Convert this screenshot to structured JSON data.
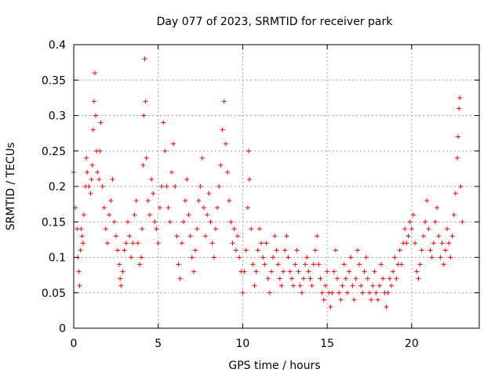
{
  "chart_data": {
    "type": "scatter",
    "title": "Day 077 of 2023, SRMTID for receiver park",
    "xlabel": "GPS time / hours",
    "ylabel": "SRMTID / TECUs",
    "xlim": [
      0,
      24
    ],
    "ylim": [
      0,
      0.4
    ],
    "x_ticks": [
      0,
      5,
      10,
      15,
      20
    ],
    "x_tick_labels": [
      "0",
      "5",
      "10",
      "15",
      "20"
    ],
    "y_ticks": [
      0,
      0.05,
      0.1,
      0.15,
      0.2,
      0.25,
      0.3,
      0.35,
      0.4
    ],
    "y_tick_labels": [
      "0",
      "0.05",
      "0.1",
      "0.15",
      "0.2",
      "0.25",
      "0.3",
      "0.35",
      "0.4"
    ],
    "grid": true,
    "marker": "+",
    "marker_color": "#ff0000",
    "series": [
      {
        "name": "SRMTID",
        "points": [
          [
            0.0,
            0.22
          ],
          [
            0.1,
            0.17
          ],
          [
            0.2,
            0.14
          ],
          [
            0.25,
            0.1
          ],
          [
            0.3,
            0.08
          ],
          [
            0.35,
            0.06
          ],
          [
            0.4,
            0.11
          ],
          [
            0.45,
            0.14
          ],
          [
            0.5,
            0.13
          ],
          [
            0.55,
            0.12
          ],
          [
            0.6,
            0.16
          ],
          [
            0.7,
            0.2
          ],
          [
            0.75,
            0.24
          ],
          [
            0.8,
            0.22
          ],
          [
            0.9,
            0.2
          ],
          [
            1.0,
            0.19
          ],
          [
            1.05,
            0.21
          ],
          [
            1.1,
            0.23
          ],
          [
            1.15,
            0.28
          ],
          [
            1.2,
            0.32
          ],
          [
            1.25,
            0.36
          ],
          [
            1.3,
            0.3
          ],
          [
            1.35,
            0.25
          ],
          [
            1.4,
            0.22
          ],
          [
            1.5,
            0.21
          ],
          [
            1.55,
            0.25
          ],
          [
            1.6,
            0.29
          ],
          [
            1.7,
            0.2
          ],
          [
            1.8,
            0.17
          ],
          [
            1.9,
            0.14
          ],
          [
            2.0,
            0.12
          ],
          [
            2.1,
            0.16
          ],
          [
            2.2,
            0.18
          ],
          [
            2.3,
            0.21
          ],
          [
            2.4,
            0.15
          ],
          [
            2.5,
            0.13
          ],
          [
            2.6,
            0.11
          ],
          [
            2.7,
            0.09
          ],
          [
            2.75,
            0.07
          ],
          [
            2.8,
            0.06
          ],
          [
            2.9,
            0.08
          ],
          [
            3.0,
            0.11
          ],
          [
            3.1,
            0.12
          ],
          [
            3.2,
            0.15
          ],
          [
            3.3,
            0.13
          ],
          [
            3.4,
            0.1
          ],
          [
            3.5,
            0.12
          ],
          [
            3.6,
            0.16
          ],
          [
            3.7,
            0.18
          ],
          [
            3.8,
            0.12
          ],
          [
            3.9,
            0.09
          ],
          [
            4.0,
            0.1
          ],
          [
            4.05,
            0.14
          ],
          [
            4.1,
            0.23
          ],
          [
            4.15,
            0.3
          ],
          [
            4.2,
            0.38
          ],
          [
            4.25,
            0.32
          ],
          [
            4.3,
            0.24
          ],
          [
            4.4,
            0.18
          ],
          [
            4.5,
            0.16
          ],
          [
            4.6,
            0.21
          ],
          [
            4.7,
            0.19
          ],
          [
            4.8,
            0.15
          ],
          [
            4.9,
            0.14
          ],
          [
            5.0,
            0.12
          ],
          [
            5.1,
            0.17
          ],
          [
            5.2,
            0.2
          ],
          [
            5.3,
            0.29
          ],
          [
            5.4,
            0.25
          ],
          [
            5.5,
            0.2
          ],
          [
            5.6,
            0.17
          ],
          [
            5.7,
            0.15
          ],
          [
            5.8,
            0.22
          ],
          [
            5.9,
            0.26
          ],
          [
            6.0,
            0.2
          ],
          [
            6.1,
            0.13
          ],
          [
            6.2,
            0.09
          ],
          [
            6.3,
            0.07
          ],
          [
            6.4,
            0.12
          ],
          [
            6.5,
            0.15
          ],
          [
            6.6,
            0.18
          ],
          [
            6.7,
            0.21
          ],
          [
            6.8,
            0.16
          ],
          [
            6.9,
            0.13
          ],
          [
            7.0,
            0.1
          ],
          [
            7.1,
            0.08
          ],
          [
            7.2,
            0.11
          ],
          [
            7.3,
            0.14
          ],
          [
            7.4,
            0.18
          ],
          [
            7.5,
            0.2
          ],
          [
            7.6,
            0.24
          ],
          [
            7.7,
            0.17
          ],
          [
            7.8,
            0.13
          ],
          [
            7.9,
            0.16
          ],
          [
            8.0,
            0.19
          ],
          [
            8.1,
            0.15
          ],
          [
            8.2,
            0.12
          ],
          [
            8.3,
            0.1
          ],
          [
            8.4,
            0.14
          ],
          [
            8.5,
            0.17
          ],
          [
            8.6,
            0.2
          ],
          [
            8.7,
            0.23
          ],
          [
            8.8,
            0.28
          ],
          [
            8.9,
            0.32
          ],
          [
            9.0,
            0.26
          ],
          [
            9.1,
            0.22
          ],
          [
            9.2,
            0.18
          ],
          [
            9.3,
            0.15
          ],
          [
            9.4,
            0.12
          ],
          [
            9.5,
            0.14
          ],
          [
            9.6,
            0.11
          ],
          [
            9.7,
            0.13
          ],
          [
            9.8,
            0.1
          ],
          [
            9.9,
            0.08
          ],
          [
            10.0,
            0.05
          ],
          [
            10.1,
            0.08
          ],
          [
            10.2,
            0.11
          ],
          [
            10.3,
            0.17
          ],
          [
            10.35,
            0.25
          ],
          [
            10.4,
            0.21
          ],
          [
            10.5,
            0.14
          ],
          [
            10.6,
            0.09
          ],
          [
            10.7,
            0.06
          ],
          [
            10.8,
            0.08
          ],
          [
            10.9,
            0.11
          ],
          [
            11.0,
            0.14
          ],
          [
            11.1,
            0.12
          ],
          [
            11.2,
            0.1
          ],
          [
            11.3,
            0.09
          ],
          [
            11.4,
            0.12
          ],
          [
            11.5,
            0.07
          ],
          [
            11.6,
            0.05
          ],
          [
            11.7,
            0.08
          ],
          [
            11.8,
            0.1
          ],
          [
            11.9,
            0.13
          ],
          [
            12.0,
            0.11
          ],
          [
            12.1,
            0.09
          ],
          [
            12.2,
            0.07
          ],
          [
            12.3,
            0.06
          ],
          [
            12.4,
            0.08
          ],
          [
            12.5,
            0.11
          ],
          [
            12.6,
            0.13
          ],
          [
            12.7,
            0.1
          ],
          [
            12.8,
            0.08
          ],
          [
            12.9,
            0.07
          ],
          [
            13.0,
            0.06
          ],
          [
            13.1,
            0.09
          ],
          [
            13.2,
            0.11
          ],
          [
            13.3,
            0.08
          ],
          [
            13.4,
            0.06
          ],
          [
            13.5,
            0.05
          ],
          [
            13.6,
            0.07
          ],
          [
            13.7,
            0.09
          ],
          [
            13.8,
            0.1
          ],
          [
            13.9,
            0.08
          ],
          [
            14.0,
            0.07
          ],
          [
            14.1,
            0.06
          ],
          [
            14.2,
            0.09
          ],
          [
            14.3,
            0.11
          ],
          [
            14.4,
            0.13
          ],
          [
            14.5,
            0.09
          ],
          [
            14.6,
            0.07
          ],
          [
            14.7,
            0.05
          ],
          [
            14.8,
            0.04
          ],
          [
            14.9,
            0.06
          ],
          [
            15.0,
            0.08
          ],
          [
            15.1,
            0.05
          ],
          [
            15.2,
            0.03
          ],
          [
            15.3,
            0.05
          ],
          [
            15.4,
            0.08
          ],
          [
            15.5,
            0.11
          ],
          [
            15.6,
            0.07
          ],
          [
            15.7,
            0.05
          ],
          [
            15.8,
            0.04
          ],
          [
            15.9,
            0.06
          ],
          [
            16.0,
            0.09
          ],
          [
            16.1,
            0.07
          ],
          [
            16.2,
            0.05
          ],
          [
            16.3,
            0.08
          ],
          [
            16.4,
            0.1
          ],
          [
            16.5,
            0.06
          ],
          [
            16.6,
            0.04
          ],
          [
            16.7,
            0.07
          ],
          [
            16.8,
            0.11
          ],
          [
            16.9,
            0.09
          ],
          [
            17.0,
            0.06
          ],
          [
            17.1,
            0.05
          ],
          [
            17.2,
            0.08
          ],
          [
            17.3,
            0.1
          ],
          [
            17.4,
            0.07
          ],
          [
            17.5,
            0.05
          ],
          [
            17.6,
            0.04
          ],
          [
            17.7,
            0.06
          ],
          [
            17.8,
            0.08
          ],
          [
            17.9,
            0.05
          ],
          [
            18.0,
            0.04
          ],
          [
            18.1,
            0.06
          ],
          [
            18.2,
            0.09
          ],
          [
            18.3,
            0.07
          ],
          [
            18.4,
            0.05
          ],
          [
            18.5,
            0.03
          ],
          [
            18.6,
            0.05
          ],
          [
            18.7,
            0.07
          ],
          [
            18.8,
            0.06
          ],
          [
            18.9,
            0.08
          ],
          [
            19.0,
            0.1
          ],
          [
            19.1,
            0.07
          ],
          [
            19.2,
            0.09
          ],
          [
            19.3,
            0.11
          ],
          [
            19.4,
            0.09
          ],
          [
            19.5,
            0.12
          ],
          [
            19.6,
            0.14
          ],
          [
            19.7,
            0.12
          ],
          [
            19.8,
            0.13
          ],
          [
            19.9,
            0.15
          ],
          [
            20.0,
            0.14
          ],
          [
            20.1,
            0.16
          ],
          [
            20.2,
            0.12
          ],
          [
            20.3,
            0.08
          ],
          [
            20.4,
            0.07
          ],
          [
            20.5,
            0.09
          ],
          [
            20.6,
            0.11
          ],
          [
            20.7,
            0.13
          ],
          [
            20.8,
            0.15
          ],
          [
            20.9,
            0.18
          ],
          [
            21.0,
            0.14
          ],
          [
            21.1,
            0.11
          ],
          [
            21.2,
            0.1
          ],
          [
            21.3,
            0.12
          ],
          [
            21.4,
            0.15
          ],
          [
            21.5,
            0.17
          ],
          [
            21.6,
            0.13
          ],
          [
            21.7,
            0.1
          ],
          [
            21.8,
            0.12
          ],
          [
            21.9,
            0.09
          ],
          [
            22.0,
            0.11
          ],
          [
            22.1,
            0.14
          ],
          [
            22.2,
            0.12
          ],
          [
            22.3,
            0.1
          ],
          [
            22.4,
            0.13
          ],
          [
            22.5,
            0.16
          ],
          [
            22.6,
            0.19
          ],
          [
            22.7,
            0.24
          ],
          [
            22.75,
            0.27
          ],
          [
            22.8,
            0.31
          ],
          [
            22.85,
            0.325
          ],
          [
            22.9,
            0.2
          ],
          [
            23.0,
            0.15
          ]
        ]
      }
    ]
  }
}
